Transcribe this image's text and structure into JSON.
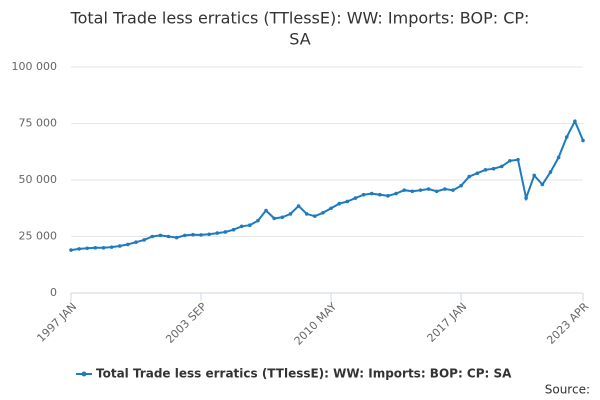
{
  "chart_data": {
    "type": "line",
    "title_lines": [
      "Total Trade less erratics (TTlessE): WW: Imports: BOP: CP:",
      "SA"
    ],
    "source_label": "Source:",
    "categories": [
      "1997 JAN",
      null,
      null,
      null,
      null,
      null,
      null,
      null,
      null,
      null,
      null,
      null,
      null,
      null,
      null,
      null,
      "2003 SEP",
      null,
      null,
      null,
      null,
      null,
      null,
      null,
      null,
      null,
      null,
      null,
      null,
      null,
      null,
      null,
      "2010 MAY",
      null,
      null,
      null,
      null,
      null,
      null,
      null,
      null,
      null,
      null,
      null,
      null,
      null,
      null,
      null,
      "2017 JAN",
      null,
      null,
      null,
      null,
      null,
      null,
      null,
      null,
      null,
      null,
      null,
      null,
      null,
      null,
      "2023 APR"
    ],
    "series": [
      {
        "name": "Total Trade less erratics (TTlessE): WW: Imports: BOP: CP: SA",
        "color": "#1f7bbf",
        "values": [
          19000,
          19500,
          19800,
          20000,
          20000,
          20300,
          20800,
          21500,
          22500,
          23500,
          25000,
          25500,
          25000,
          24500,
          25500,
          25800,
          25700,
          26000,
          26500,
          27000,
          28000,
          29500,
          30000,
          32000,
          36500,
          33000,
          33500,
          35000,
          38500,
          35000,
          34000,
          35500,
          37500,
          39500,
          40500,
          42000,
          43500,
          44000,
          43500,
          43000,
          44000,
          45500,
          45000,
          45500,
          46000,
          45000,
          46000,
          45500,
          47500,
          51500,
          53000,
          54500,
          55000,
          56000,
          58500,
          59000,
          42000,
          52000,
          48000,
          53500,
          60000,
          69000,
          76000,
          67500
        ]
      }
    ],
    "ylim": [
      0,
      100000
    ],
    "yticks": [
      0,
      {
        "value": 25000,
        "label": "25 000"
      },
      {
        "value": 50000,
        "label": "50 000"
      },
      {
        "value": 75000,
        "label": "75 000"
      },
      {
        "value": 100000,
        "label": "100 000"
      }
    ],
    "grid": true
  }
}
